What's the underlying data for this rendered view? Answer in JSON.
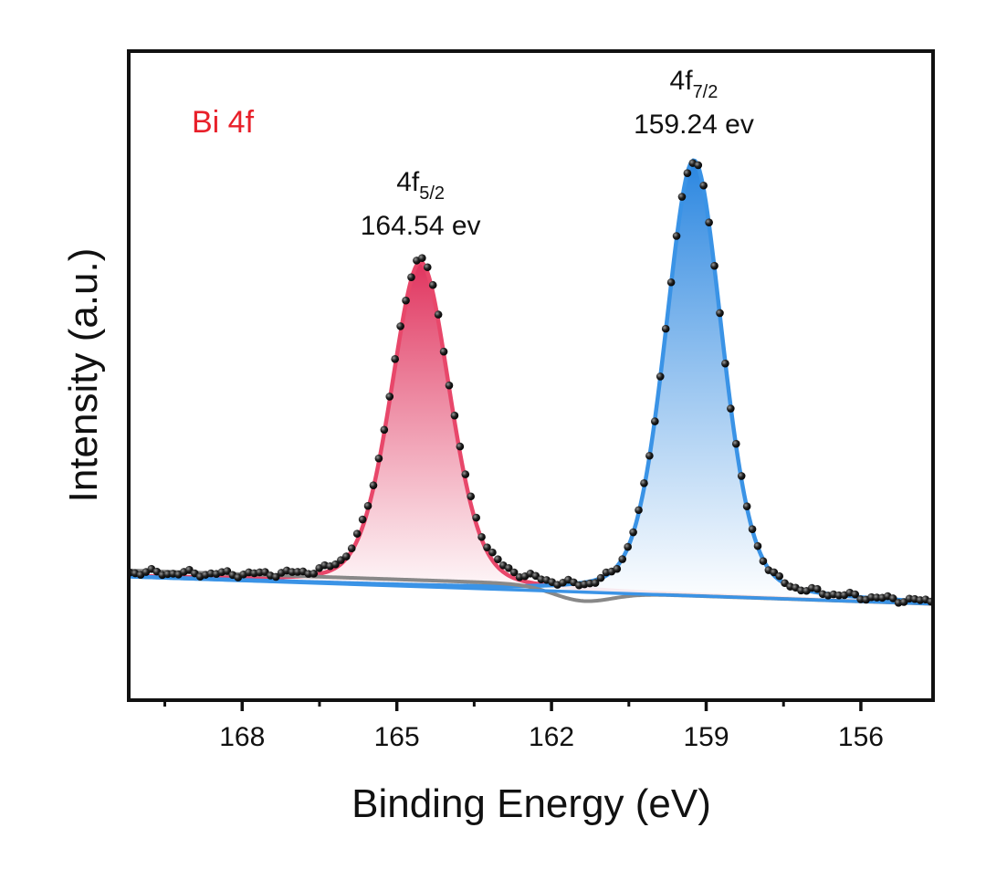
{
  "chart_data": {
    "type": "line",
    "panel_label": "Bi 4f",
    "xlabel": "Binding Energy (eV)",
    "ylabel": "Intensity (a.u.)",
    "x_reversed": true,
    "xlim": [
      170.2,
      154.6
    ],
    "ylim": [
      -0.1,
      1.1
    ],
    "xticks": [
      168,
      165,
      162,
      159,
      156
    ],
    "y_ticks_shown": false,
    "background_baseline": {
      "x": [
        170.2,
        154.6
      ],
      "y": [
        0.128,
        0.078
      ]
    },
    "peaks": [
      {
        "label_main": "4f",
        "label_sub": "5/2",
        "energy_text": "164.54 ev",
        "center": 164.54,
        "height": 0.6,
        "width": 0.58,
        "fill_color": "#e0345e",
        "line_color": "#e8476a"
      },
      {
        "label_main": "4f",
        "label_sub": "7/2",
        "energy_text": "159.24 ev",
        "center": 159.24,
        "height": 0.805,
        "width": 0.56,
        "fill_color": "#2a86e0",
        "line_color": "#3a93e6"
      }
    ],
    "background_curve_color": "#888888",
    "baseline_color": "#3a93e6",
    "panel_label_color": "#e8202a",
    "points_color": "#111111"
  }
}
